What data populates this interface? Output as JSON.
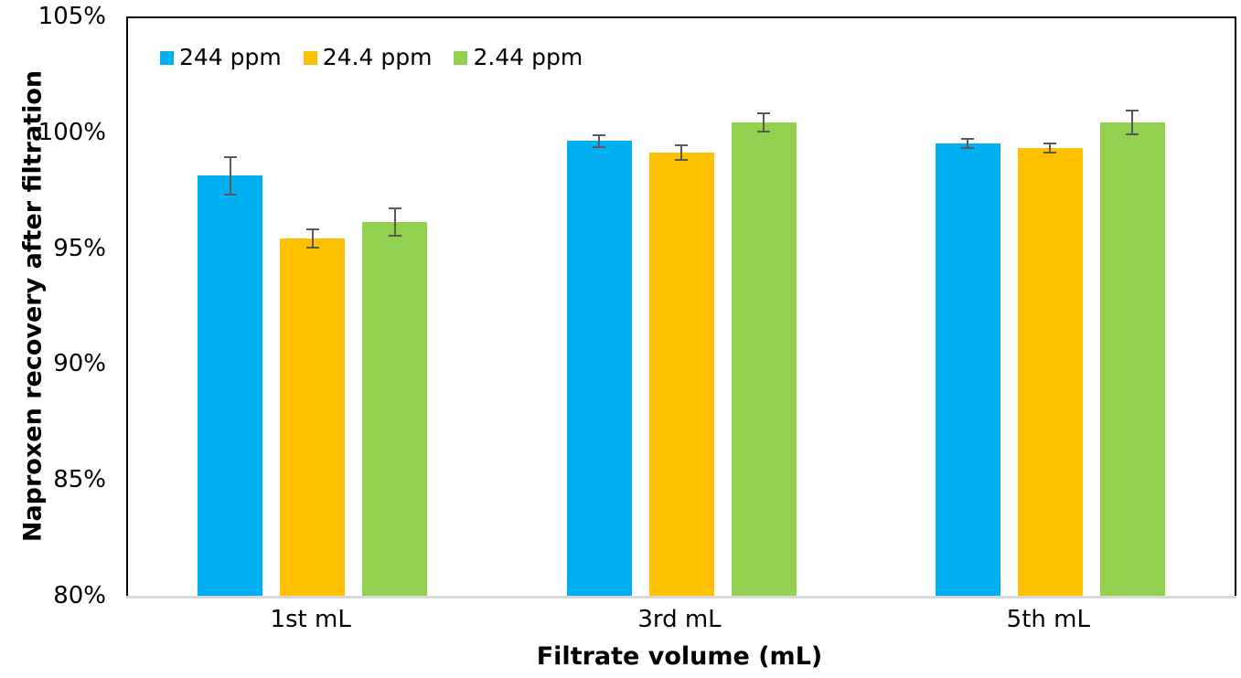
{
  "chart_data": {
    "type": "bar",
    "title": "",
    "categories": [
      "1st mL",
      "3rd mL",
      "5th mL"
    ],
    "series": [
      {
        "name": "244 ppm",
        "color": "#00B0F0",
        "values": [
          98.2,
          99.7,
          99.6
        ],
        "errors": [
          0.8,
          0.25,
          0.2
        ]
      },
      {
        "name": "24.4 ppm",
        "color": "#FFC000",
        "values": [
          95.5,
          99.2,
          99.4
        ],
        "errors": [
          0.4,
          0.3,
          0.2
        ]
      },
      {
        "name": "2.44 ppm",
        "color": "#92D050",
        "values": [
          96.2,
          100.5,
          100.5
        ],
        "errors": [
          0.6,
          0.4,
          0.5
        ]
      }
    ],
    "xlabel": "Filtrate volume (mL)",
    "ylabel": "Naproxen recovery after filtration",
    "ylim": [
      80,
      105
    ],
    "y_ticks": [
      {
        "value": 105,
        "label": "105%"
      },
      {
        "value": 100,
        "label": "100%"
      },
      {
        "value": 95,
        "label": "95%"
      },
      {
        "value": 90,
        "label": "90%"
      },
      {
        "value": 85,
        "label": "85%"
      },
      {
        "value": 80,
        "label": "80%"
      }
    ],
    "grid": false,
    "legend_position": "top-left-inside",
    "error_bar_color": "#595959",
    "axis_border_color": "#000000",
    "baseline_color": "#D9D9D9"
  }
}
